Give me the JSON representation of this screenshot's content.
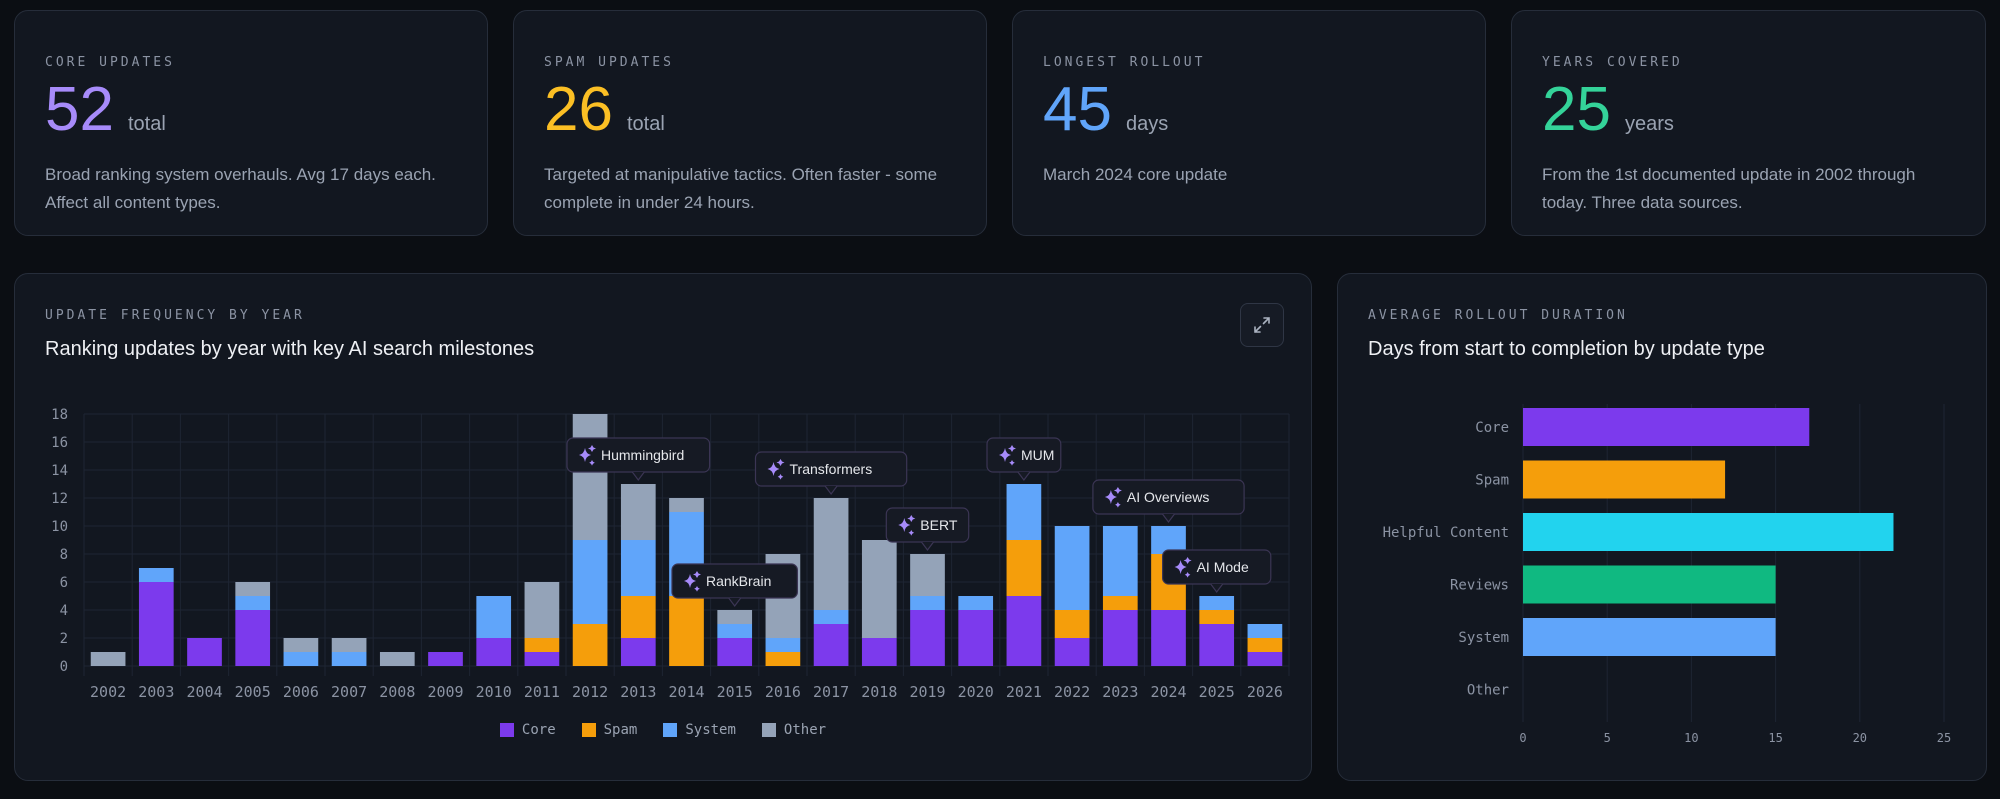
{
  "stats": [
    {
      "label": "Core Updates",
      "value": "52",
      "unit": "total",
      "description": "Broad ranking system overhauls. Avg 17 days each. Affect all content types.",
      "color": "#a78bfa"
    },
    {
      "label": "Spam Updates",
      "value": "26",
      "unit": "total",
      "description": "Targeted at manipulative tactics. Often faster - some complete in under 24 hours.",
      "color": "#fbbf24"
    },
    {
      "label": "Longest Rollout",
      "value": "45",
      "unit": "days",
      "description": "March 2024 core update",
      "color": "#60a5fa"
    },
    {
      "label": "Years Covered",
      "value": "25",
      "unit": "years",
      "description": "From the 1st documented update in 2002 through today. Three data sources.",
      "color": "#34d399"
    }
  ],
  "frequency_card": {
    "eyebrow": "Update Frequency by Year",
    "subtitle": "Ranking updates by year with key AI search milestones",
    "expand_icon": "expand-icon"
  },
  "rollout_card": {
    "eyebrow": "Average Rollout Duration",
    "subtitle": "Days from start to completion by update type"
  },
  "chart_data": [
    {
      "type": "bar",
      "stacked": true,
      "categories": [
        "2002",
        "2003",
        "2004",
        "2005",
        "2006",
        "2007",
        "2008",
        "2009",
        "2010",
        "2011",
        "2012",
        "2013",
        "2014",
        "2015",
        "2016",
        "2017",
        "2018",
        "2019",
        "2020",
        "2021",
        "2022",
        "2023",
        "2024",
        "2025",
        "2026"
      ],
      "series": [
        {
          "name": "Core",
          "color": "#7c3aed",
          "values": [
            0,
            6,
            2,
            4,
            0,
            0,
            0,
            1,
            2,
            1,
            0,
            2,
            0,
            2,
            0,
            3,
            2,
            4,
            4,
            5,
            2,
            4,
            4,
            3,
            1
          ]
        },
        {
          "name": "Spam",
          "color": "#f59e0b",
          "values": [
            0,
            0,
            0,
            0,
            0,
            0,
            0,
            0,
            0,
            1,
            3,
            3,
            5,
            0,
            1,
            0,
            0,
            0,
            0,
            4,
            2,
            1,
            4,
            1,
            1
          ]
        },
        {
          "name": "System",
          "color": "#60a5fa",
          "values": [
            0,
            1,
            0,
            1,
            1,
            1,
            0,
            0,
            3,
            0,
            6,
            4,
            6,
            1,
            1,
            1,
            0,
            1,
            1,
            4,
            6,
            5,
            2,
            1,
            1
          ]
        },
        {
          "name": "Other",
          "color": "#94a3b8",
          "values": [
            1,
            0,
            0,
            1,
            1,
            1,
            1,
            0,
            0,
            4,
            9,
            4,
            1,
            1,
            6,
            8,
            7,
            3,
            0,
            0,
            0,
            0,
            0,
            0,
            0
          ]
        }
      ],
      "ylim": [
        0,
        18
      ],
      "yticks": [
        0,
        2,
        4,
        6,
        8,
        10,
        12,
        14,
        16,
        18
      ],
      "grid": true,
      "legend": "bottom",
      "annotations": [
        {
          "year": "2013",
          "label": "Hummingbird"
        },
        {
          "year": "2015",
          "label": "RankBrain"
        },
        {
          "year": "2017",
          "label": "Transformers"
        },
        {
          "year": "2019",
          "label": "BERT"
        },
        {
          "year": "2021",
          "label": "MUM"
        },
        {
          "year": "2024",
          "label": "AI Overviews"
        },
        {
          "year": "2025",
          "label": "AI Mode"
        }
      ]
    },
    {
      "type": "bar",
      "orientation": "horizontal",
      "categories": [
        "Core",
        "Spam",
        "Helpful Content",
        "Reviews",
        "System",
        "Other"
      ],
      "values": [
        17,
        12,
        22,
        15,
        15,
        0
      ],
      "colors": [
        "#7c3aed",
        "#f59e0b",
        "#22d3ee",
        "#10b981",
        "#60a5fa",
        "#94a3b8"
      ],
      "xlim": [
        0,
        25
      ],
      "xticks": [
        0,
        5,
        10,
        15,
        20,
        25
      ],
      "grid": true
    }
  ]
}
